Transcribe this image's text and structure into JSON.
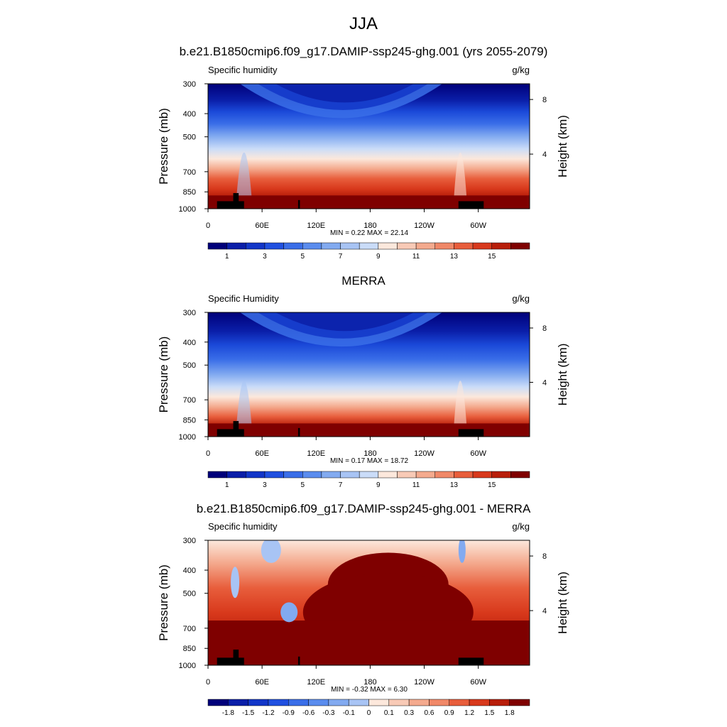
{
  "page": {
    "title": "JJA"
  },
  "chart_data": [
    {
      "type": "heatmap",
      "title": "b.e21.B1850cmip6.f09_g17.DAMIP-ssp245-ghg.001 (yrs 2055-2079)",
      "left_label": "Specific humidity",
      "right_label": "g/kg",
      "ylabel": "Pressure (mb)",
      "ylabel_right": "Height (km)",
      "x_ticks": [
        "0",
        "60E",
        "120E",
        "180",
        "120W",
        "60W"
      ],
      "x_tick_values": [
        0,
        60,
        120,
        180,
        240,
        300
      ],
      "xlim": [
        0,
        357
      ],
      "y_ticks": [
        "300",
        "400",
        "500",
        "700",
        "850",
        "1000"
      ],
      "y_tick_values": [
        300,
        400,
        500,
        700,
        850,
        1000
      ],
      "ylim": [
        1000,
        300
      ],
      "y_scale": "log",
      "right_ticks": [
        "8",
        "4"
      ],
      "right_tick_values": [
        8,
        4
      ],
      "stats": "MIN =   0.22  MAX =  22.14",
      "min": 0.22,
      "max": 22.14,
      "colorbar_labels": [
        "1",
        "3",
        "5",
        "7",
        "9",
        "11",
        "13",
        "15"
      ],
      "colorbar_levels": [
        1,
        3,
        5,
        7,
        9,
        11,
        13,
        15
      ],
      "colors": [
        "#00007a",
        "#0a1ea8",
        "#1236c8",
        "#2050e0",
        "#3a6ee8",
        "#5a8cee",
        "#82aaf0",
        "#a8c4f4",
        "#cadcf8",
        "#fce8dc",
        "#f8cab6",
        "#f4aa8e",
        "#f08868",
        "#e85e3c",
        "#d8391c",
        "#b81e0a",
        "#7f0000"
      ]
    },
    {
      "type": "heatmap",
      "title": "MERRA",
      "left_label": "Specific Humidity",
      "right_label": "g/kg",
      "ylabel": "Pressure (mb)",
      "ylabel_right": "Height (km)",
      "x_ticks": [
        "0",
        "60E",
        "120E",
        "180",
        "120W",
        "60W"
      ],
      "x_tick_values": [
        0,
        60,
        120,
        180,
        240,
        300
      ],
      "xlim": [
        0,
        357
      ],
      "y_ticks": [
        "300",
        "400",
        "500",
        "700",
        "850",
        "1000"
      ],
      "y_tick_values": [
        300,
        400,
        500,
        700,
        850,
        1000
      ],
      "ylim": [
        1000,
        300
      ],
      "y_scale": "log",
      "right_ticks": [
        "8",
        "4"
      ],
      "right_tick_values": [
        8,
        4
      ],
      "stats": "MIN =   0.17  MAX =  18.72",
      "min": 0.17,
      "max": 18.72,
      "colorbar_labels": [
        "1",
        "3",
        "5",
        "7",
        "9",
        "11",
        "13",
        "15"
      ],
      "colorbar_levels": [
        1,
        3,
        5,
        7,
        9,
        11,
        13,
        15
      ],
      "colors": [
        "#00007a",
        "#0a1ea8",
        "#1236c8",
        "#2050e0",
        "#3a6ee8",
        "#5a8cee",
        "#82aaf0",
        "#a8c4f4",
        "#cadcf8",
        "#fce8dc",
        "#f8cab6",
        "#f4aa8e",
        "#f08868",
        "#e85e3c",
        "#d8391c",
        "#b81e0a",
        "#7f0000"
      ]
    },
    {
      "type": "heatmap",
      "title": "b.e21.B1850cmip6.f09_g17.DAMIP-ssp245-ghg.001 - MERRA",
      "left_label": "Specific humidity",
      "right_label": "g/kg",
      "ylabel": "Pressure (mb)",
      "ylabel_right": "Height (km)",
      "x_ticks": [
        "0",
        "60E",
        "120E",
        "180",
        "120W",
        "60W"
      ],
      "x_tick_values": [
        0,
        60,
        120,
        180,
        240,
        300
      ],
      "xlim": [
        0,
        357
      ],
      "y_ticks": [
        "300",
        "400",
        "500",
        "700",
        "850",
        "1000"
      ],
      "y_tick_values": [
        300,
        400,
        500,
        700,
        850,
        1000
      ],
      "ylim": [
        1000,
        300
      ],
      "y_scale": "log",
      "right_ticks": [
        "8",
        "4"
      ],
      "right_tick_values": [
        8,
        4
      ],
      "stats": "MIN =  -0.32  MAX =   6.30",
      "min": -0.32,
      "max": 6.3,
      "colorbar_labels": [
        "-1.8",
        "-1.5",
        "-1.2",
        "-0.9",
        "-0.6",
        "-0.3",
        "-0.1",
        "0",
        "0.1",
        "0.3",
        "0.6",
        "0.9",
        "1.2",
        "1.5",
        "1.8"
      ],
      "colorbar_levels": [
        -1.8,
        -1.5,
        -1.2,
        -0.9,
        -0.6,
        -0.3,
        -0.1,
        0,
        0.1,
        0.3,
        0.6,
        0.9,
        1.2,
        1.5,
        1.8
      ],
      "colors": [
        "#00007a",
        "#0a1ea8",
        "#1236c8",
        "#2050e0",
        "#3a6ee8",
        "#5a8cee",
        "#82aaf0",
        "#a8c4f4",
        "#fce8dc",
        "#f8cab6",
        "#f4aa8e",
        "#f08868",
        "#e85e3c",
        "#d8391c",
        "#b81e0a",
        "#7f0000"
      ]
    }
  ]
}
